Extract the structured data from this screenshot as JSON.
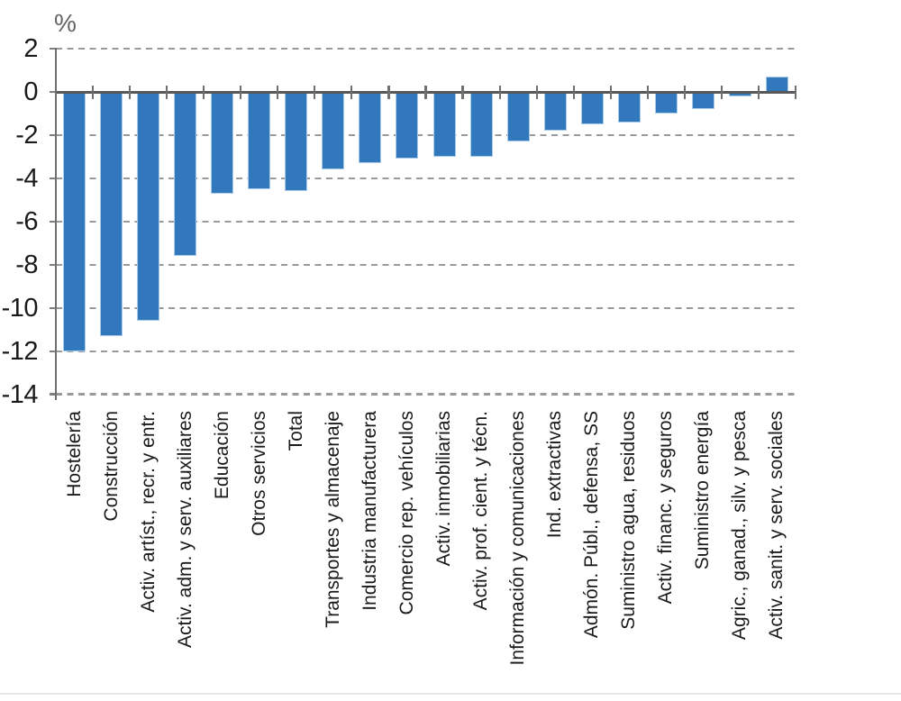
{
  "chart_data": {
    "type": "bar",
    "title": "",
    "unit_label": "%",
    "categories": [
      "Hostelería",
      "Construcción",
      "Activ. artíst., recr. y entr.",
      "Activ. adm. y serv. auxiliares",
      "Educación",
      "Otros servicios",
      "Total",
      "Transportes y almacenaje",
      "Industria manufacturera",
      "Comercio rep. vehículos",
      "Activ. inmobiliarias",
      "Activ. prof. cient. y técn.",
      "Información y comunicaciones",
      "Ind. extractivas",
      "Admón. Públ., defensa, SS",
      "Suministro agua, residuos",
      "Activ. financ. y seguros",
      "Suministro energía",
      "Agric., ganad., silv. y pesca",
      "Activ. sanit. y serv. sociales"
    ],
    "values": [
      -12.0,
      -11.3,
      -10.6,
      -7.6,
      -4.7,
      -4.5,
      -4.6,
      -3.6,
      -3.3,
      -3.1,
      -3.0,
      -3.0,
      -2.3,
      -1.8,
      -1.5,
      -1.4,
      -1.0,
      -0.8,
      -0.2,
      0.7
    ],
    "xlabel": "",
    "ylabel": "%",
    "ylim": [
      -14,
      2
    ],
    "yticks": [
      2,
      0,
      -2,
      -4,
      -6,
      -8,
      -10,
      -12,
      -14
    ],
    "grid": "horizontal-dashed",
    "legend": "none",
    "bar_color": "#3178bd",
    "bar_border_color": "#aacbe9",
    "gridline_color": "#9a9a9a",
    "axis_color": "#58585a",
    "text_color": "#1a1a1a"
  }
}
